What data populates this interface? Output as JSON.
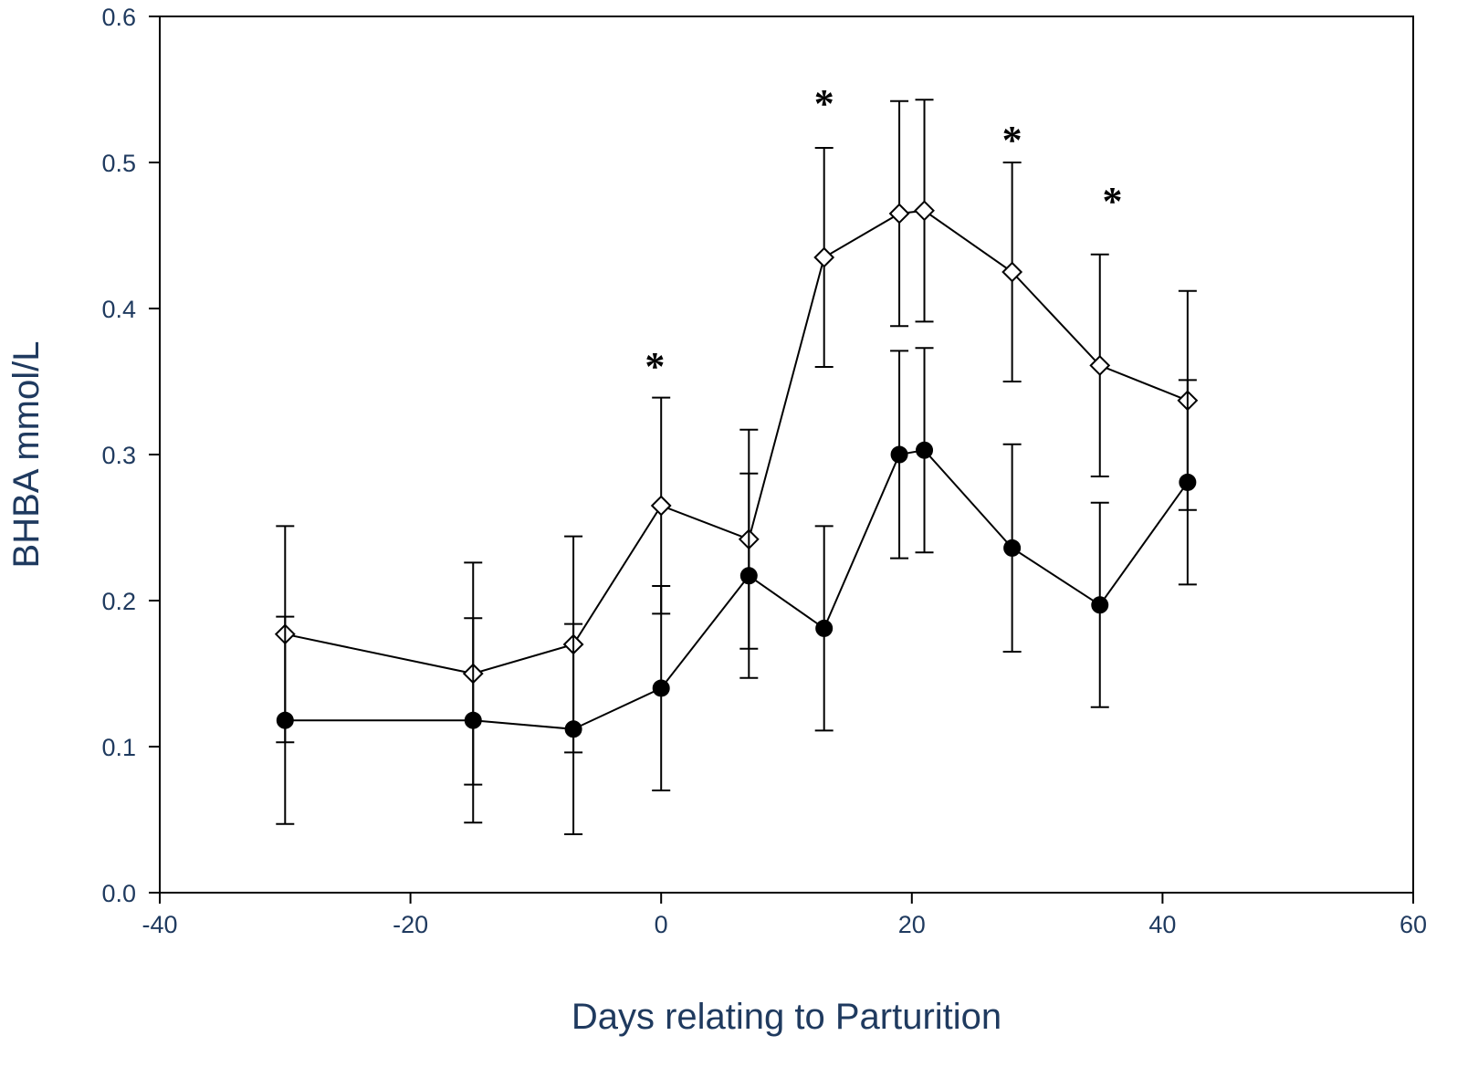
{
  "chart_data": {
    "type": "line",
    "title": "",
    "xlabel": "Days relating to Parturition",
    "ylabel": "BHBA mmol/L",
    "xlim": [
      -40,
      60
    ],
    "ylim": [
      0.0,
      0.6
    ],
    "xticks": [
      -40,
      -20,
      0,
      20,
      40,
      60
    ],
    "xtick_labels": [
      "-40",
      "-20",
      "0",
      "20",
      "40",
      "60"
    ],
    "yticks": [
      0.0,
      0.1,
      0.2,
      0.3,
      0.4,
      0.5,
      0.6
    ],
    "ytick_labels": [
      "0.0",
      "0.1",
      "0.2",
      "0.3",
      "0.4",
      "0.5",
      "0.6"
    ],
    "grid": false,
    "legend": "none",
    "series": [
      {
        "marker": "open-diamond",
        "color": "#000000",
        "x": [
          -30,
          -15,
          -7,
          0,
          7,
          13,
          19,
          21,
          28,
          35,
          42
        ],
        "y": [
          0.177,
          0.15,
          0.17,
          0.265,
          0.242,
          0.435,
          0.465,
          0.467,
          0.425,
          0.361,
          0.337
        ],
        "err": [
          0.074,
          0.076,
          0.074,
          0.074,
          0.075,
          0.075,
          0.077,
          0.076,
          0.075,
          0.076,
          0.075
        ]
      },
      {
        "marker": "filled-circle",
        "color": "#000000",
        "x": [
          -30,
          -15,
          -7,
          0,
          7,
          13,
          19,
          21,
          28,
          35,
          42
        ],
        "y": [
          0.118,
          0.118,
          0.112,
          0.14,
          0.217,
          0.181,
          0.3,
          0.303,
          0.236,
          0.197,
          0.281
        ],
        "err": [
          0.071,
          0.07,
          0.072,
          0.07,
          0.07,
          0.07,
          0.071,
          0.07,
          0.071,
          0.07,
          0.07
        ]
      }
    ],
    "annotations": [
      {
        "text": "*",
        "x": -0.5,
        "y": 0.365
      },
      {
        "text": "*",
        "x": 13,
        "y": 0.545
      },
      {
        "text": "*",
        "x": 28,
        "y": 0.52
      },
      {
        "text": "*",
        "x": 36,
        "y": 0.478
      }
    ]
  }
}
